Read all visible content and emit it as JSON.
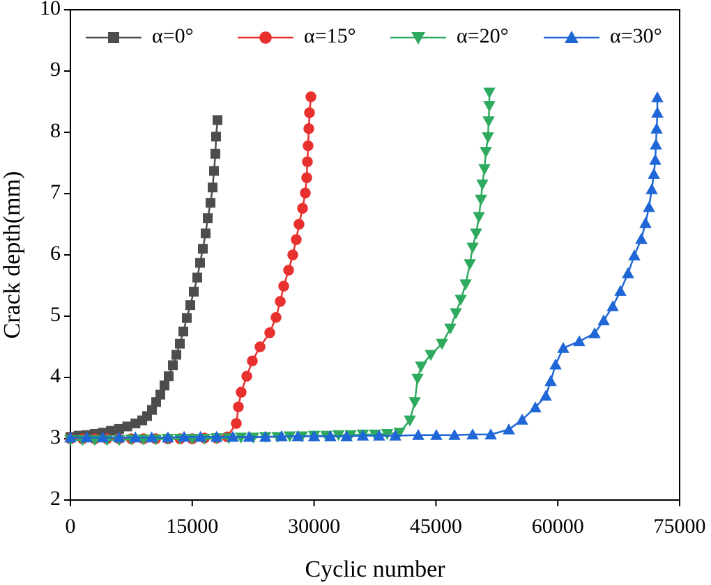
{
  "chart_data": {
    "type": "line",
    "x_label": "Cyclic number",
    "y_label": "Crack depth(mm)",
    "xlim": [
      0,
      75000
    ],
    "xticks": [
      0,
      15000,
      30000,
      45000,
      60000,
      75000
    ],
    "ylim": [
      2,
      10
    ],
    "yticks": [
      2,
      3,
      4,
      5,
      6,
      7,
      8,
      9,
      10
    ],
    "legend": "top-left",
    "series": [
      {
        "name": "α=0°",
        "color": "#4d4d4d",
        "marker": "square",
        "x": [
          0,
          1000,
          2000,
          3000,
          4000,
          5000,
          6000,
          7000,
          8000,
          8840,
          9440,
          10040,
          10555,
          11070,
          11585,
          12100,
          12615,
          13044,
          13473,
          13902,
          14331,
          14760,
          15189,
          15618,
          15961,
          16305,
          16648,
          16906,
          17249,
          17506,
          17678,
          17850,
          17935,
          18107
        ],
        "values": [
          3.03,
          3.05,
          3.06,
          3.08,
          3.1,
          3.13,
          3.16,
          3.2,
          3.25,
          3.3,
          3.37,
          3.47,
          3.6,
          3.72,
          3.87,
          4.02,
          4.2,
          4.37,
          4.55,
          4.75,
          4.97,
          5.18,
          5.4,
          5.63,
          5.87,
          6.1,
          6.35,
          6.6,
          6.85,
          7.1,
          7.37,
          7.65,
          7.93,
          8.2
        ]
      },
      {
        "name": "α=15°",
        "color": "#e8302e",
        "marker": "circle",
        "x": [
          0,
          1500,
          3000,
          4500,
          6000,
          7500,
          9000,
          10500,
          12000,
          13500,
          15000,
          16500,
          18000,
          19308,
          20424,
          20681,
          21025,
          21711,
          22398,
          23342,
          24543,
          25315,
          25830,
          26260,
          26860,
          27375,
          27804,
          28147,
          28576,
          28920,
          29091,
          29177,
          29263,
          29349,
          29434,
          29606
        ],
        "values": [
          3.0,
          3.0,
          3.0,
          3.0,
          3.0,
          3.0,
          3.0,
          3.0,
          3.0,
          3.0,
          3.0,
          3.01,
          3.01,
          3.03,
          3.25,
          3.52,
          3.76,
          4.02,
          4.27,
          4.5,
          4.73,
          4.98,
          5.24,
          5.49,
          5.75,
          6.0,
          6.25,
          6.5,
          6.76,
          7.01,
          7.26,
          7.52,
          7.78,
          8.06,
          8.32,
          8.58
        ]
      },
      {
        "name": "α=20°",
        "color": "#2eaa5e",
        "marker": "triangle-down",
        "x": [
          0,
          1500,
          3000,
          4500,
          6000,
          7500,
          9000,
          10500,
          12000,
          13500,
          15000,
          16500,
          18000,
          19500,
          21000,
          22500,
          24000,
          25500,
          27000,
          28500,
          30000,
          31500,
          33000,
          34500,
          36000,
          37500,
          39000,
          40505,
          41792,
          42393,
          42736,
          43165,
          44366,
          45740,
          46769,
          47455,
          48056,
          48657,
          49172,
          49515,
          49944,
          50287,
          50545,
          50716,
          50974,
          51146,
          51403,
          51489,
          51575,
          51575
        ],
        "values": [
          2.98,
          2.98,
          2.98,
          2.98,
          2.98,
          2.99,
          2.99,
          2.99,
          3.0,
          3.0,
          3.0,
          3.0,
          3.01,
          3.01,
          3.02,
          3.02,
          3.03,
          3.03,
          3.04,
          3.04,
          3.05,
          3.05,
          3.06,
          3.06,
          3.07,
          3.07,
          3.08,
          3.1,
          3.3,
          3.6,
          3.98,
          4.18,
          4.37,
          4.55,
          4.8,
          5.05,
          5.27,
          5.52,
          5.85,
          6.12,
          6.35,
          6.62,
          6.9,
          7.15,
          7.4,
          7.68,
          7.92,
          8.18,
          8.43,
          8.65
        ]
      },
      {
        "name": "α=30°",
        "color": "#1f66d6",
        "marker": "triangle-up",
        "x": [
          0,
          2000,
          4000,
          6000,
          8000,
          10000,
          12000,
          14000,
          16000,
          18000,
          20000,
          22000,
          24000,
          26000,
          28000,
          30000,
          32000,
          34000,
          36000,
          38000,
          40000,
          42822,
          45053,
          47283,
          49515,
          51746,
          53977,
          55608,
          57239,
          58527,
          59127,
          59728,
          60672,
          62646,
          64534,
          65650,
          66765,
          67709,
          68650,
          69425,
          70283,
          70798,
          71227,
          71570,
          71828,
          71999,
          72085,
          72171,
          72257,
          72257
        ],
        "values": [
          3.02,
          3.02,
          3.02,
          3.02,
          3.02,
          3.02,
          3.02,
          3.03,
          3.03,
          3.03,
          3.03,
          3.03,
          3.03,
          3.04,
          3.04,
          3.04,
          3.04,
          3.04,
          3.05,
          3.05,
          3.05,
          3.06,
          3.06,
          3.06,
          3.07,
          3.07,
          3.15,
          3.31,
          3.51,
          3.7,
          3.94,
          4.21,
          4.48,
          4.59,
          4.72,
          4.93,
          5.16,
          5.41,
          5.7,
          5.99,
          6.26,
          6.52,
          6.78,
          7.07,
          7.32,
          7.55,
          7.8,
          8.06,
          8.32,
          8.57
        ]
      }
    ]
  }
}
